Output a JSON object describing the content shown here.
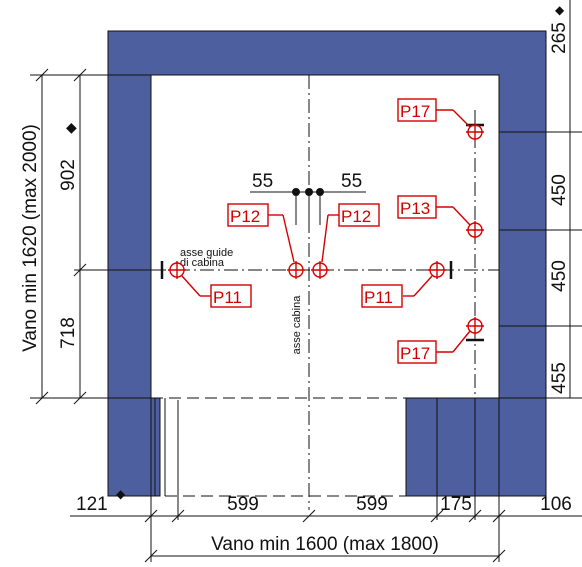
{
  "dimensions": {
    "top_right": "265",
    "right_1": "450",
    "right_2": "450",
    "right_3": "455",
    "left_upper": "902",
    "left_lower": "718",
    "vertical_total": "Vano min 1620 (max 2000)",
    "bottom_121": "121",
    "bottom_599_a": "599",
    "bottom_599_b": "599",
    "bottom_175": "175",
    "bottom_106": "106",
    "horizontal_total": "Vano min 1600 (max 1800)",
    "gap_left": "55",
    "gap_right": "55"
  },
  "labels": {
    "guide_axis_line1": "asse guide",
    "guide_axis_line2": "di cabina",
    "car_axis": "asse cabina"
  },
  "points": {
    "p17_top": "P17",
    "p13": "P13",
    "p12_left": "P12",
    "p12_right": "P12",
    "p11_left": "P11",
    "p11_right": "P11",
    "p17_bottom": "P17"
  },
  "colors": {
    "wall": "#4e5fa0",
    "marker": "#d40000",
    "line": "#111111"
  }
}
